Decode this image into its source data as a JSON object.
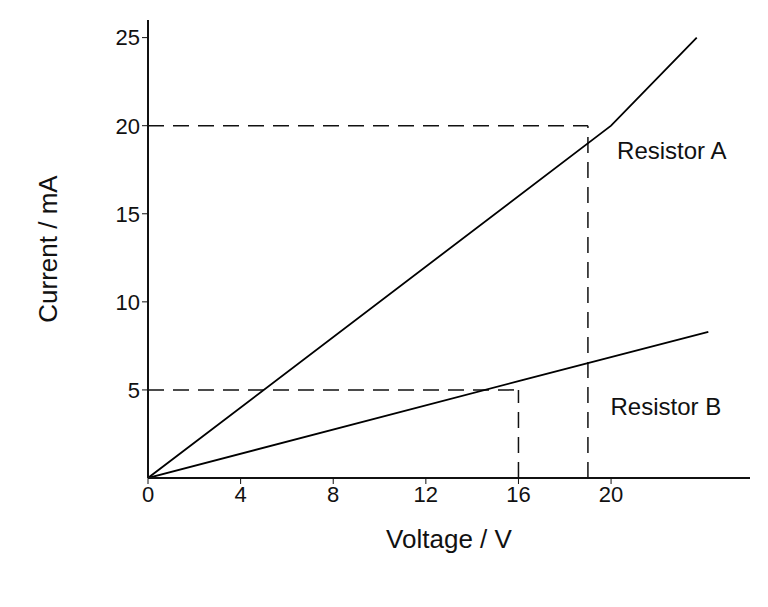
{
  "chart_data": {
    "type": "line",
    "x_label": "Voltage / V",
    "y_label": "Current / mA",
    "xlim": [
      0,
      26
    ],
    "ylim": [
      0,
      26
    ],
    "xticks": [
      0,
      4,
      8,
      12,
      16,
      20
    ],
    "yticks": [
      5,
      10,
      15,
      20,
      25
    ],
    "grid": false,
    "series": [
      {
        "name": "Resistor A",
        "color": "#000000",
        "x": [
          0,
          20,
          23.7
        ],
        "values": [
          0,
          20,
          25
        ]
      },
      {
        "name": "Resistor B",
        "color": "#000000",
        "x": [
          0,
          16,
          24.2
        ],
        "values": [
          0,
          5.5,
          8.3
        ]
      }
    ],
    "guides": [
      {
        "x": 19,
        "y": 20
      },
      {
        "x": 16,
        "y": 5
      }
    ]
  }
}
